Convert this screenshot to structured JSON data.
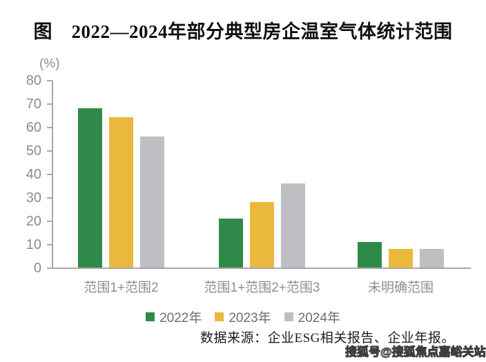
{
  "chart": {
    "title": "图　2022—2024年部分典型房企温室气体统计范围",
    "unit_label": "(%)",
    "source_note": "数据来源：企业ESG相关报告、企业年报。",
    "watermark": "搜狐号@搜狐焦点嘉峪关站"
  },
  "chart_data": {
    "type": "bar",
    "title": "2022—2024年部分典型房企温室气体统计范围",
    "categories": [
      "范围1+范围2",
      "范围1+范围2+范围3",
      "未明确范围"
    ],
    "series": [
      {
        "name": "2022年",
        "color": "#2F8A4A",
        "values": [
          68,
          21,
          11
        ]
      },
      {
        "name": "2023年",
        "color": "#EAB83C",
        "values": [
          64,
          28,
          8
        ]
      },
      {
        "name": "2024年",
        "color": "#BDBFC3",
        "values": [
          56,
          36,
          8
        ]
      }
    ],
    "ylabel": "(%)",
    "ylim": [
      0,
      80
    ],
    "yticks": [
      0,
      10,
      20,
      30,
      40,
      50,
      60,
      70,
      80
    ],
    "grid": false,
    "legend_position": "bottom",
    "axis_color": "#A8A8A8",
    "tick_text_color": "#8C8C8C",
    "category_text_color": "#8F8F8F",
    "legend_text_color": "#6E6E6E",
    "source": "数据来源：企业ESG相关报告、企业年报。",
    "watermark": "搜狐号@搜狐焦点嘉峪关站"
  }
}
